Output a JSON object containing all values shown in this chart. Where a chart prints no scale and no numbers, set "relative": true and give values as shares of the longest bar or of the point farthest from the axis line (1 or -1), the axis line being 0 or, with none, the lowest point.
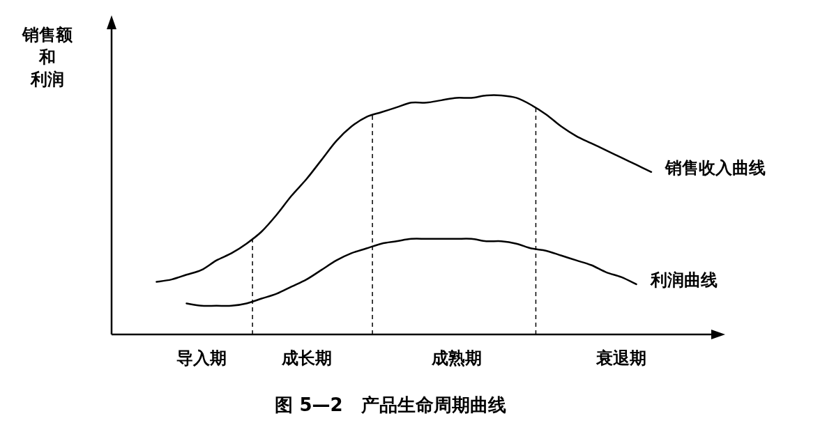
{
  "chart_data": {
    "type": "line",
    "relative": true,
    "title": "图 5—2　产品生命周期曲线",
    "ylabel": "销售额和利润",
    "categories": [
      null,
      null,
      null,
      null,
      null,
      null,
      "导入期",
      null,
      null,
      null,
      null,
      null,
      null,
      "成长期",
      null,
      null,
      null,
      null,
      null,
      null,
      null,
      null,
      null,
      "成熟期",
      null,
      null,
      null,
      null,
      null,
      null,
      null,
      null,
      null,
      null,
      "衰退期",
      null,
      null,
      null,
      null,
      null,
      null
    ],
    "series": [
      {
        "name": "销售收入曲线",
        "color": "#000000",
        "values": [
          null,
          null,
          null,
          0.22,
          0.23,
          0.25,
          0.27,
          0.31,
          0.34,
          0.38,
          0.43,
          0.5,
          0.58,
          0.65,
          0.73,
          0.81,
          0.87,
          0.91,
          0.93,
          0.95,
          0.97,
          0.97,
          0.98,
          0.99,
          0.99,
          1.0,
          1.0,
          0.99,
          0.96,
          0.92,
          0.87,
          0.83,
          0.8,
          0.77,
          0.74,
          0.71,
          0.68,
          null,
          null,
          null,
          null
        ]
      },
      {
        "name": "利润曲线",
        "color": "#000000",
        "values": [
          null,
          null,
          null,
          null,
          null,
          0.13,
          0.12,
          0.12,
          0.12,
          0.13,
          0.15,
          0.17,
          0.2,
          0.23,
          0.27,
          0.31,
          0.34,
          0.36,
          0.38,
          0.39,
          0.4,
          0.4,
          0.4,
          0.4,
          0.4,
          0.39,
          0.39,
          0.38,
          0.36,
          0.35,
          0.33,
          0.31,
          0.29,
          0.26,
          0.24,
          0.21,
          null,
          null,
          null,
          null,
          null
        ]
      }
    ]
  }
}
